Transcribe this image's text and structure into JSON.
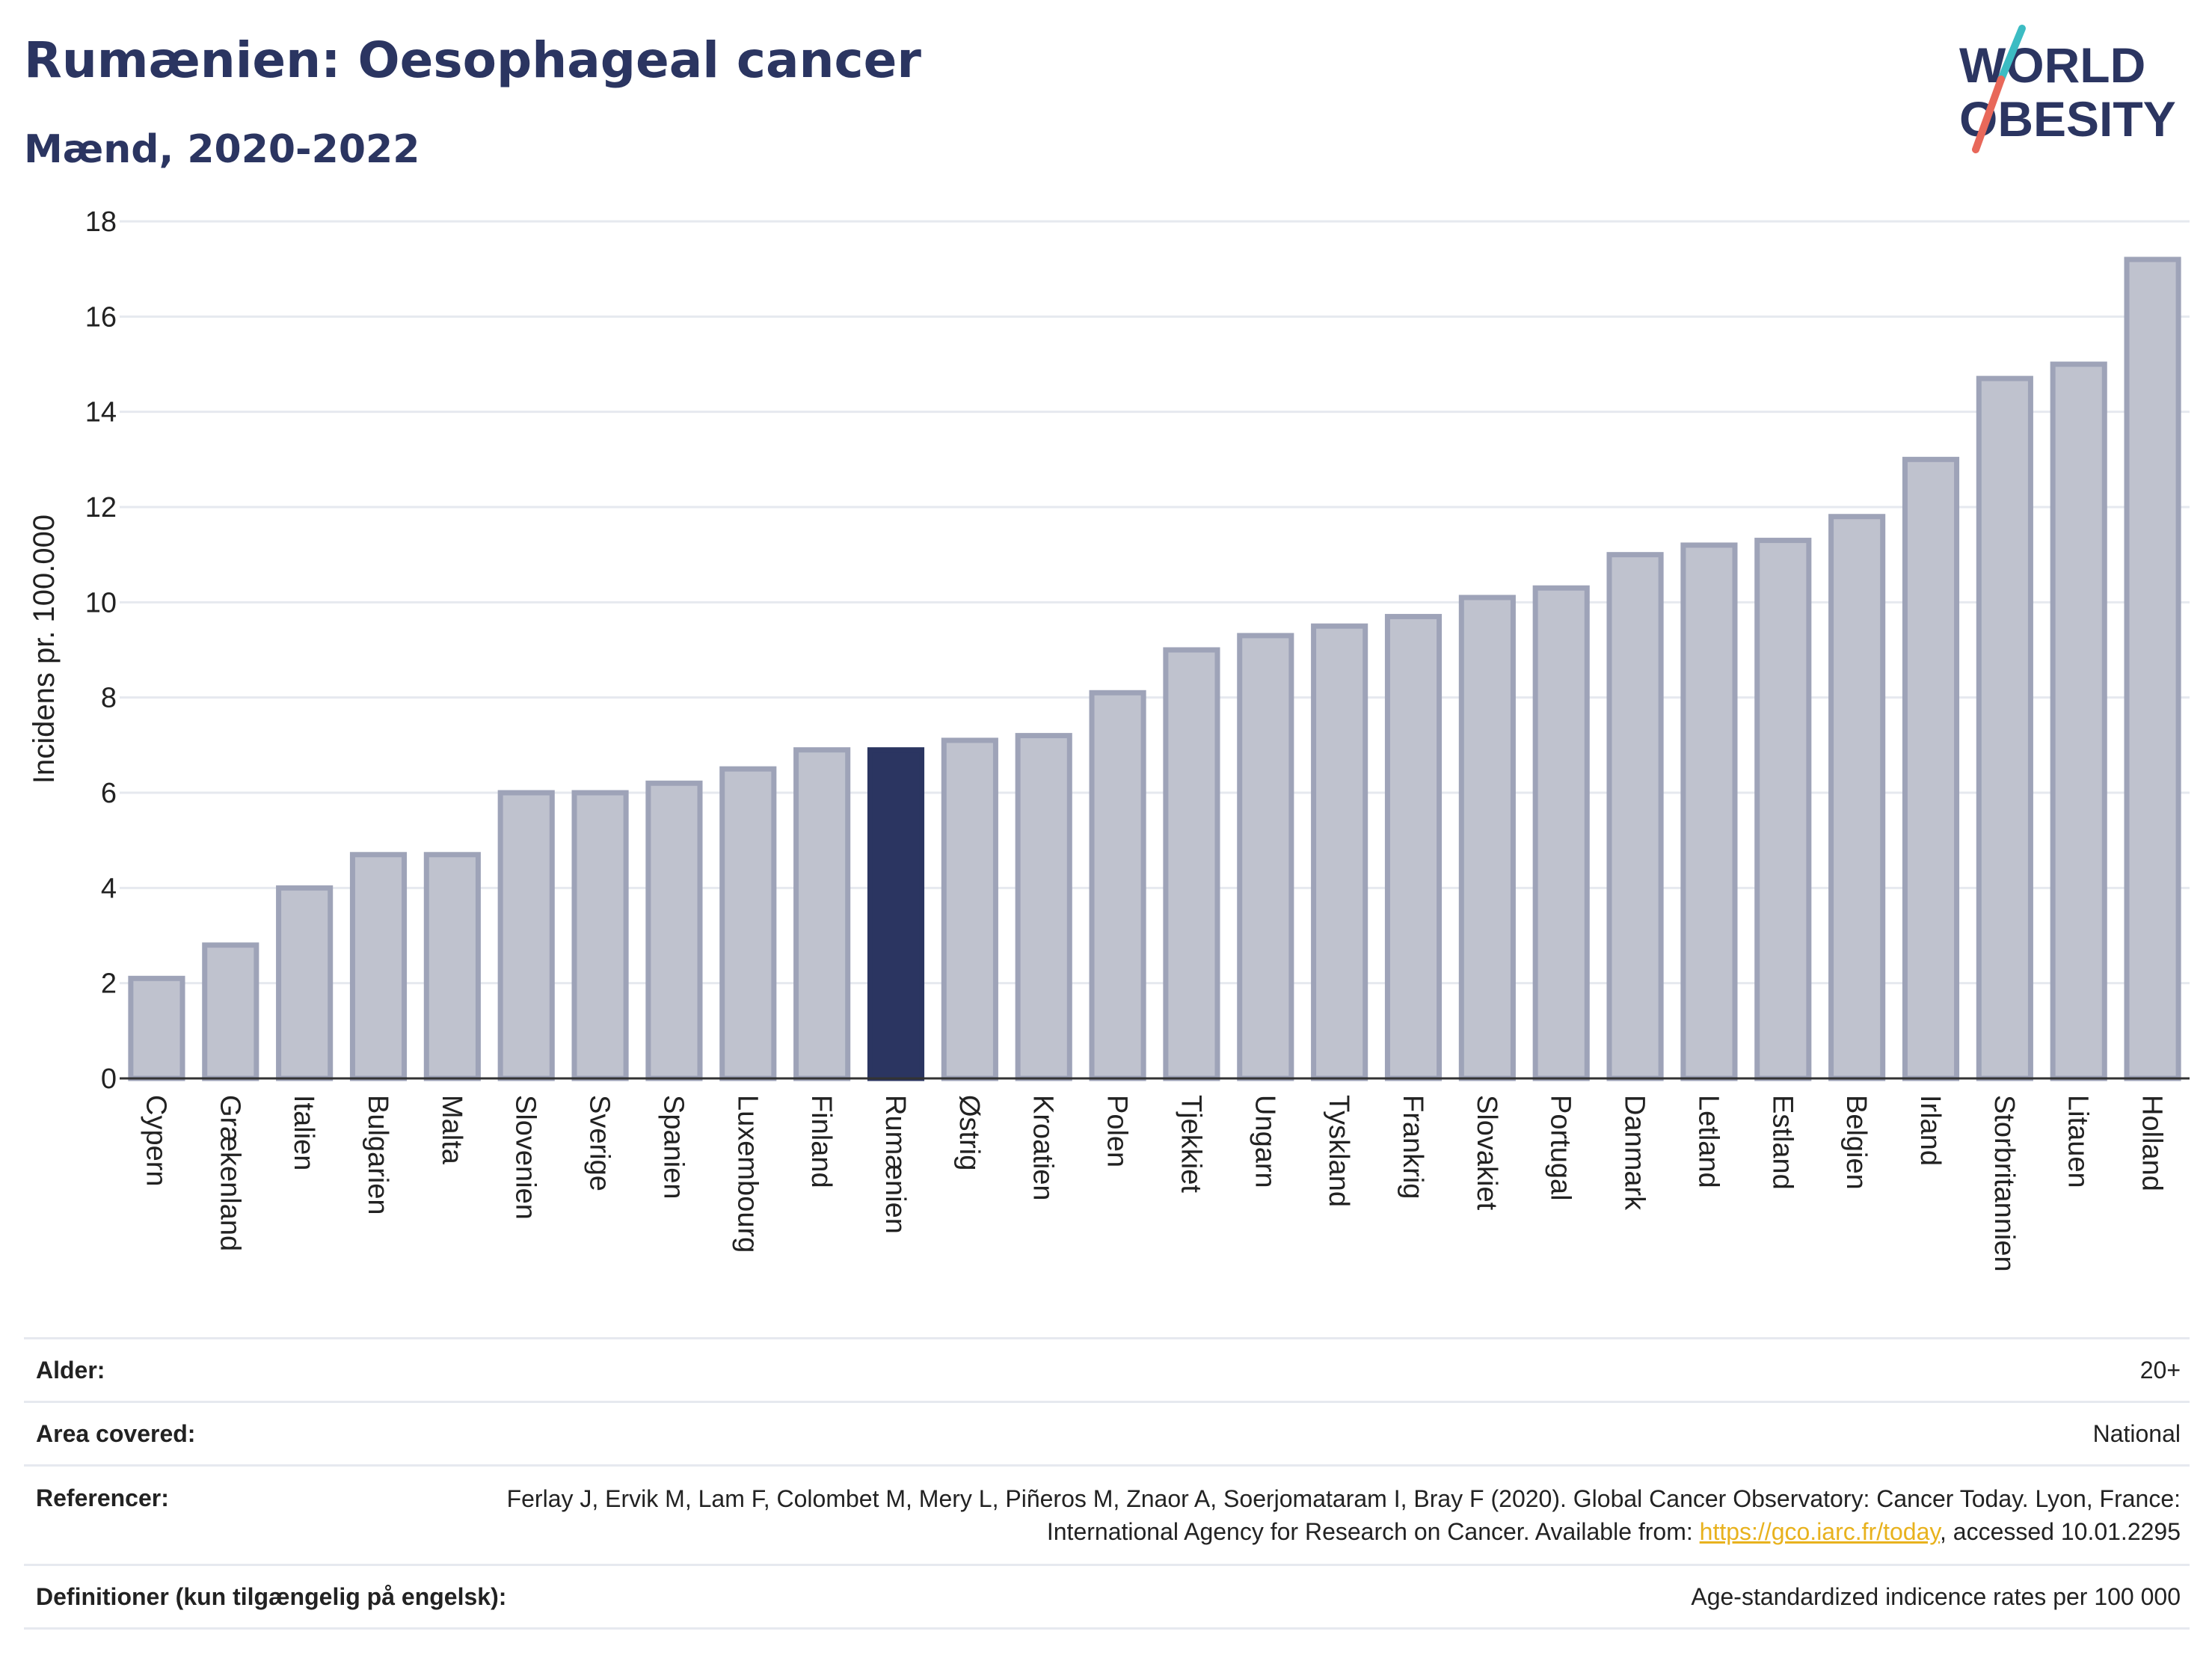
{
  "header": {
    "title": "Rumænien: Oesophageal cancer",
    "subtitle": "Mænd, 2020-2022"
  },
  "logo": {
    "line1": "WORLD",
    "line2": "OBESITY",
    "colors": {
      "text": "#2b3561",
      "slash_teal": "#3cbcc3",
      "slash_coral": "#e8685a"
    }
  },
  "colors": {
    "bar_fill": "#bfc2ce",
    "bar_stroke": "#9ea3b8",
    "highlight": "#2b3561",
    "grid": "#e6e9ef",
    "axis": "#333333"
  },
  "chart_data": {
    "type": "bar",
    "title": "Rumænien: Oesophageal cancer",
    "subtitle": "Mænd, 2020-2022",
    "ylabel": "Incidens pr. 100.000",
    "xlabel": "",
    "ylim": [
      0,
      18
    ],
    "yticks": [
      0,
      2,
      4,
      6,
      8,
      10,
      12,
      14,
      16,
      18
    ],
    "grid": true,
    "highlight": "Rumænien",
    "categories": [
      "Cypern",
      "Grækenland",
      "Italien",
      "Bulgarien",
      "Malta",
      "Slovenien",
      "Sverige",
      "Spanien",
      "Luxembourg",
      "Finland",
      "Rumænien",
      "Østrig",
      "Kroatien",
      "Polen",
      "Tjekkiet",
      "Ungarn",
      "Tyskland",
      "Frankrig",
      "Slovakiet",
      "Portugal",
      "Danmark",
      "Letland",
      "Estland",
      "Belgien",
      "Irland",
      "Storbritannien",
      "Litauen",
      "Holland"
    ],
    "values": [
      2.1,
      2.8,
      4.0,
      4.7,
      4.7,
      6.0,
      6.0,
      6.2,
      6.5,
      6.9,
      6.9,
      7.1,
      7.2,
      8.1,
      9.0,
      9.3,
      9.5,
      9.7,
      10.1,
      10.3,
      11.0,
      11.2,
      11.3,
      11.8,
      13.0,
      14.7,
      15.0,
      17.2
    ]
  },
  "info": {
    "age_label": "Alder:",
    "age_value": "20+",
    "area_label": "Area covered:",
    "area_value": "National",
    "ref_label": "Referencer:",
    "ref_text_1": "Ferlay J, Ervik M, Lam F, Colombet M, Mery L, Piñeros M, Znaor A, Soerjomataram I, Bray F (2020). Global Cancer Observatory: Cancer Today. Lyon, France: International Agency for Research on Cancer. Available from: ",
    "ref_link": "https://gco.iarc.fr/today",
    "ref_text_2": ", accessed 10.01.2295",
    "def_label": "Definitioner (kun tilgængelig på engelsk):",
    "def_value": "Age-standardized indicence rates per 100 000"
  }
}
